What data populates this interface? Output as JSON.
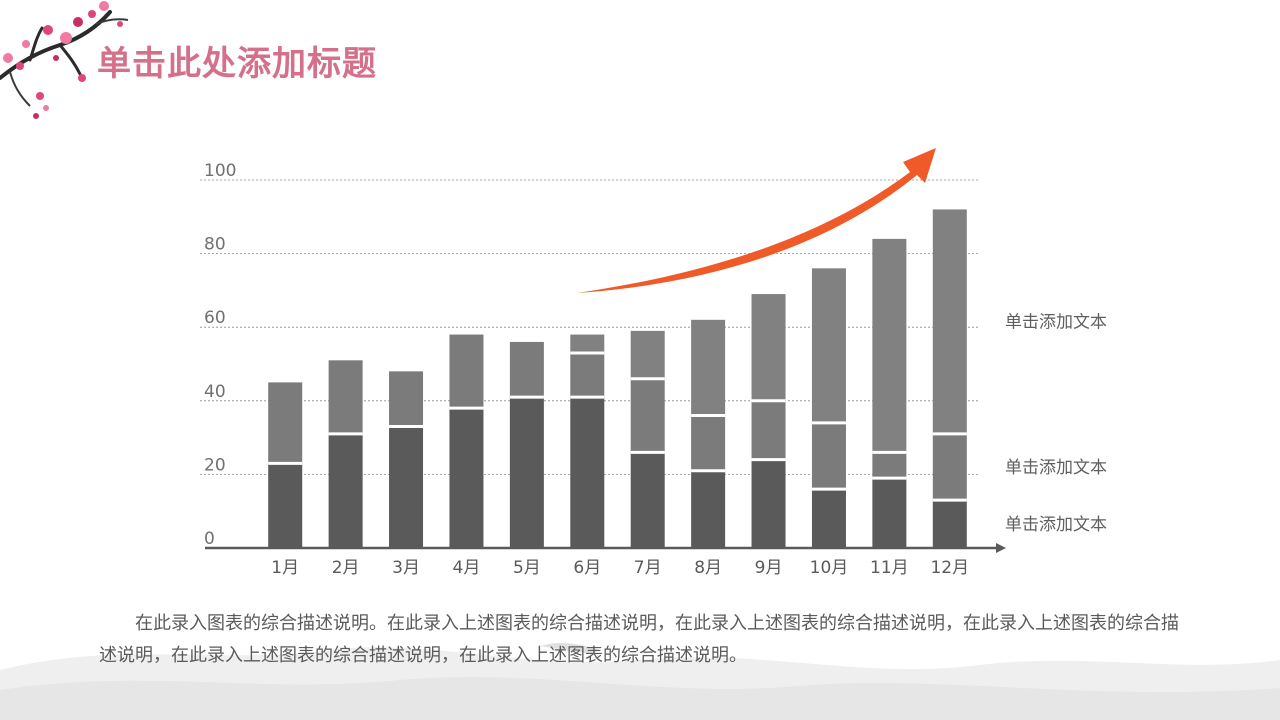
{
  "title": "单击此处添加标题",
  "description": "在此录入图表的综合描述说明。在此录入上述图表的综合描述说明，在此录入上述图表的综合描述说明，在此录入上述图表的综合描述说明，在此录入上述图表的综合描述说明，在此录入上述图表的综合描述说明。",
  "chart_data": {
    "type": "bar",
    "stacked": true,
    "categories": [
      "1月",
      "2月",
      "3月",
      "4月",
      "5月",
      "6月",
      "7月",
      "8月",
      "9月",
      "10月",
      "11月",
      "12月"
    ],
    "series": [
      {
        "name": "单击添加文本",
        "values": [
          23,
          31,
          33,
          38,
          41,
          41,
          26,
          21,
          24,
          16,
          19,
          13
        ]
      },
      {
        "name": "单击添加文本",
        "values": [
          22,
          20,
          15,
          20,
          15,
          12,
          20,
          15,
          16,
          18,
          7,
          18
        ]
      },
      {
        "name": "单击添加文本",
        "values": [
          0,
          0,
          0,
          0,
          0,
          5,
          13,
          26,
          29,
          42,
          58,
          61
        ]
      }
    ],
    "yticks": [
      0,
      20,
      40,
      60,
      80,
      100
    ],
    "ylim": [
      0,
      100
    ],
    "grid": true,
    "gridline_style": "dashed",
    "legend_placement": "right",
    "annotation": "upward-trend-arrow",
    "colors": {
      "series": [
        "#5a5a5a",
        "#7b7b7b",
        "#818181"
      ],
      "segment_separator": "#ffffff",
      "trend_arrow": "#f05a28",
      "axis": "#5a5a5a",
      "gridline": "#8a8a8a"
    }
  },
  "theme": {
    "title_color": "#d4708a",
    "text_color": "#5a5a5a",
    "blossom_colors": [
      "#e0457b",
      "#f07aa0",
      "#c92d63"
    ],
    "branch_color": "#2b2b2b"
  }
}
